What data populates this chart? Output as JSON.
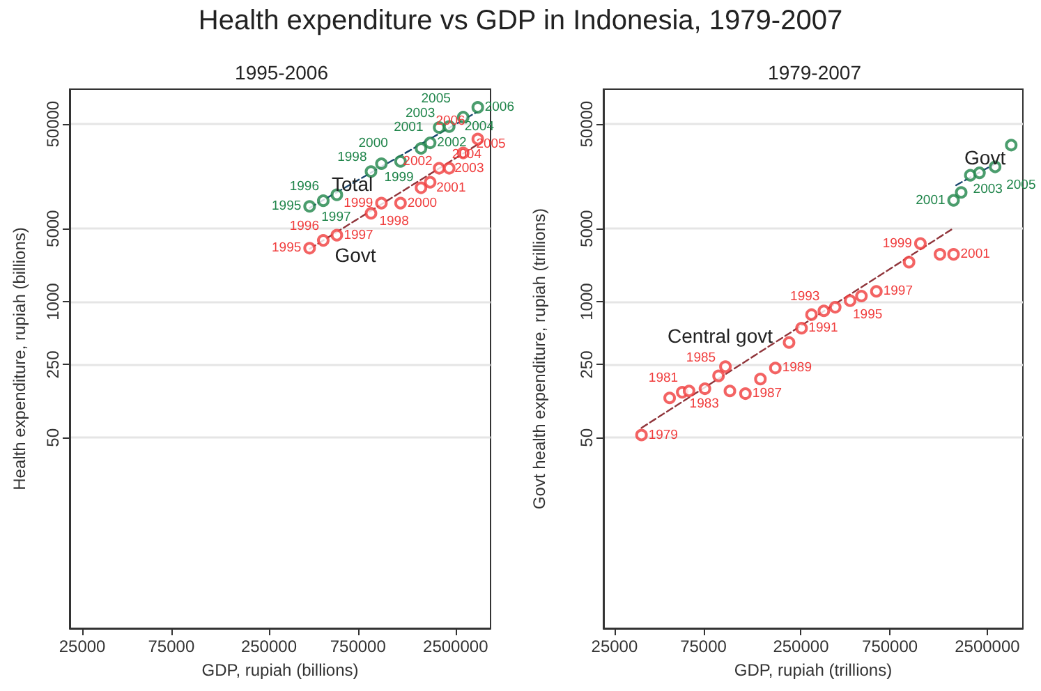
{
  "chart_data": [
    {
      "type": "scatter",
      "title": "Health expenditure vs GDP in Indonesia, 1979-2007",
      "subtitle": "1995-2006",
      "xlabel": "GDP, rupiah (billions)",
      "ylabel": "Health expenditure, rupiah (billions)",
      "log": "xy",
      "xlim": [
        21400,
        3850000
      ],
      "ylim": [
        0.75,
        108000
      ],
      "xticks": [
        25000,
        75000,
        250000,
        750000,
        2500000
      ],
      "yticks": [
        50,
        250,
        1000,
        5000,
        50000
      ],
      "grid": "y",
      "annotations": [
        "Total",
        "Govt",
        {
          "text": "1995",
          "x": 413000,
          "y": 8170
        },
        {
          "text": "1996",
          "x": 489000,
          "y": 9250
        },
        {
          "text": "1997",
          "x": 578000,
          "y": 10540
        },
        {
          "text": "1998",
          "x": 881000,
          "y": 17600
        },
        {
          "text": "1999",
          "x": 1002000,
          "y": 20900
        },
        {
          "text": "2000",
          "x": 1268000,
          "y": 22000
        },
        {
          "text": "2001",
          "x": 1633000,
          "y": 29300
        },
        {
          "text": "2002",
          "x": 1828000,
          "y": 33100
        },
        {
          "text": "2003",
          "x": 2042000,
          "y": 46400
        },
        {
          "text": "2004",
          "x": 2312000,
          "y": 47400
        },
        {
          "text": "2005",
          "x": 2748000,
          "y": 58300
        },
        {
          "text": "2006",
          "x": 3289000,
          "y": 72300
        },
        {
          "text": "1995",
          "x": 413000,
          "y": 3250
        },
        {
          "text": "1996",
          "x": 489000,
          "y": 3860
        },
        {
          "text": "1997",
          "x": 578000,
          "y": 4330
        },
        {
          "text": "1998",
          "x": 881000,
          "y": 7010
        },
        {
          "text": "1999",
          "x": 1002000,
          "y": 8770
        },
        {
          "text": "2000",
          "x": 1268000,
          "y": 8770
        },
        {
          "text": "2001",
          "x": 1633000,
          "y": 12300
        },
        {
          "text": "2002",
          "x": 1828000,
          "y": 13900
        },
        {
          "text": "2003",
          "x": 2042000,
          "y": 18900
        },
        {
          "text": "2004",
          "x": 2312000,
          "y": 18900
        },
        {
          "text": "2005",
          "x": 2748000,
          "y": 26500
        },
        {
          "text": "2006",
          "x": 3289000,
          "y": 36000
        }
      ],
      "series": [
        {
          "type": "scatter",
          "marker": "circle",
          "color": "#1e8449",
          "x": [
            413000,
            489000,
            578000,
            881000,
            1002000,
            1268000,
            1633000,
            1828000,
            2042000,
            2312000,
            2748000,
            3289000
          ],
          "values": [
            8170,
            9250,
            10540,
            17600,
            20900,
            22000,
            29300,
            33100,
            46400,
            47400,
            58300,
            72300
          ]
        },
        {
          "type": "scatter",
          "marker": "circle",
          "color": "#f03c3c",
          "x": [
            413000,
            489000,
            578000,
            881000,
            1002000,
            1268000,
            1633000,
            1828000,
            2042000,
            2312000,
            2748000,
            3289000
          ],
          "values": [
            3250,
            3860,
            4330,
            7010,
            8770,
            8770,
            12300,
            13900,
            18900,
            18900,
            26500,
            36000
          ]
        },
        {
          "type": "line",
          "marker": "none",
          "line_style": "dashed",
          "color": "#1a476f",
          "x": [
            413000,
            3289000
          ],
          "values": [
            7900,
            66000
          ]
        },
        {
          "type": "line",
          "marker": "none",
          "line_style": "dashed",
          "color": "#90353b",
          "x": [
            413000,
            3289000
          ],
          "values": [
            3200,
            32000
          ]
        }
      ]
    },
    {
      "type": "scatter",
      "subtitle": "1979-2007",
      "xlabel": "GDP, rupiah (trillions)",
      "ylabel": "Govt health expenditure, rupiah (trillions)",
      "log": "xy",
      "xlim": [
        21800,
        3880000
      ],
      "ylim": [
        0.75,
        108000
      ],
      "xticks": [
        25000,
        75000,
        250000,
        750000,
        2500000
      ],
      "yticks": [
        50,
        250,
        1000,
        5000,
        50000
      ],
      "grid": "y",
      "annotations": [
        "Govt",
        "Central govt",
        {
          "text": "1979",
          "x": 34900,
          "y": 53
        },
        {
          "text": "1981",
          "x": 57700,
          "y": 136
        },
        {
          "text": "1983",
          "x": 76400,
          "y": 147
        },
        {
          "text": "1985",
          "x": 98400,
          "y": 239
        },
        {
          "text": "1987",
          "x": 126000,
          "y": 132
        },
        {
          "text": "1989",
          "x": 182300,
          "y": 232
        },
        {
          "text": "1991",
          "x": 252000,
          "y": 558
        },
        {
          "text": "1993",
          "x": 332000,
          "y": 817
        },
        {
          "text": "1995",
          "x": 459000,
          "y": 1023
        },
        {
          "text": "1997",
          "x": 635000,
          "y": 1256
        },
        {
          "text": "1999",
          "x": 1094000,
          "y": 3600
        },
        {
          "text": "2001",
          "x": 1648000,
          "y": 2840
        },
        {
          "text": "2001",
          "x": 1648000,
          "y": 9330
        },
        {
          "text": "2003",
          "x": 2027000,
          "y": 16200
        },
        {
          "text": "2005",
          "x": 2754000,
          "y": 19500
        }
      ],
      "series": [
        {
          "type": "scatter",
          "marker": "circle",
          "color": "#f03c3c",
          "x": [
            34900,
            49400,
            57700,
            62800,
            76400,
            90400,
            98400,
            104000,
            126000,
            151600,
            182300,
            216000,
            252000,
            285000,
            332000,
            382000,
            459000,
            528000,
            635000,
            951000,
            1094000,
            1393000,
            1648000
          ],
          "values": [
            53,
            120,
            136,
            140,
            147,
            195,
            239,
            140,
            132,
            182,
            232,
            407,
            558,
            752,
            817,
            885,
            1023,
            1132,
            1256,
            2390,
            3600,
            2840,
            2840
          ]
        },
        {
          "type": "scatter",
          "marker": "circle",
          "color": "#1e8449",
          "x": [
            1648000,
            1811000,
            2027000,
            2270000,
            2754000,
            3360000
          ],
          "values": [
            9330,
            11100,
            16200,
            17100,
            19500,
            31500
          ]
        },
        {
          "type": "line",
          "marker": "none",
          "line_style": "dashed",
          "color": "#90353b",
          "x": [
            34900,
            1648000
          ],
          "values": [
            62,
            5050
          ]
        },
        {
          "type": "line",
          "marker": "none",
          "line_style": "dashed",
          "color": "#1a476f",
          "x": [
            1700000,
            2900000
          ],
          "values": [
            13000,
            22000
          ]
        }
      ]
    }
  ]
}
